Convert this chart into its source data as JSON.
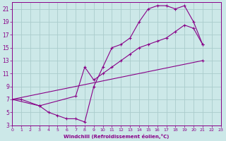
{
  "xlabel": "Windchill (Refroidissement éolien,°C)",
  "bg_color": "#cce8e8",
  "grid_color": "#aacccc",
  "line_color": "#880088",
  "xlim": [
    0,
    23
  ],
  "ylim": [
    3,
    22
  ],
  "xticks": [
    0,
    1,
    2,
    3,
    4,
    5,
    6,
    7,
    8,
    9,
    10,
    11,
    12,
    13,
    14,
    15,
    16,
    17,
    18,
    19,
    20,
    21,
    22,
    23
  ],
  "yticks": [
    3,
    5,
    7,
    9,
    11,
    13,
    15,
    17,
    19,
    21
  ],
  "line1_x": [
    0,
    1,
    3,
    4,
    5,
    6,
    7,
    8,
    9,
    10,
    11,
    12,
    13,
    14,
    15,
    16,
    17,
    18,
    19,
    20,
    21
  ],
  "line1_y": [
    7,
    7,
    6,
    5,
    4.5,
    4,
    4,
    3.5,
    9,
    12,
    15,
    15.5,
    16.5,
    19,
    21,
    21.5,
    21.5,
    21,
    21.5,
    19,
    15.5
  ],
  "line2_x": [
    0,
    21
  ],
  "line2_y": [
    7,
    13
  ],
  "line3_x": [
    0,
    3,
    7,
    8,
    9,
    10,
    11,
    12,
    13,
    14,
    15,
    16,
    17,
    18,
    19,
    20,
    21
  ],
  "line3_y": [
    7,
    6,
    7.5,
    12,
    10,
    11,
    12,
    13,
    14,
    15,
    15.5,
    16,
    16.5,
    17.5,
    18.5,
    18,
    15.5
  ]
}
